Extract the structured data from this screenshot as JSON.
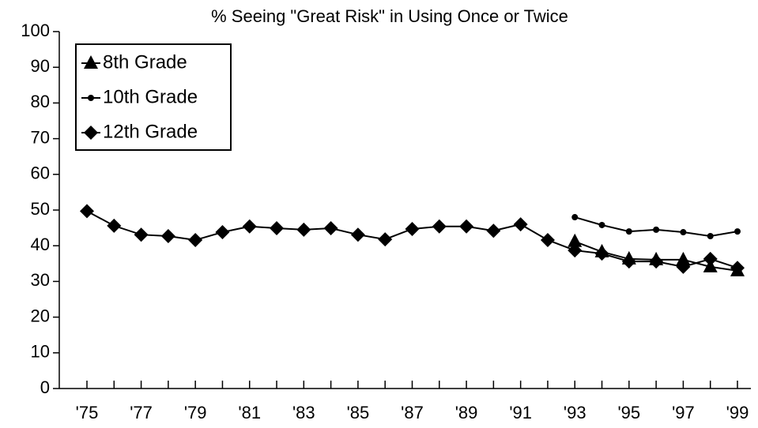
{
  "chart_data": {
    "type": "line",
    "title": "% Seeing \"Great Risk\" in Using Once or Twice",
    "categories": [
      "'75",
      null,
      "'77",
      null,
      "'79",
      null,
      "'81",
      null,
      "'83",
      null,
      "'85",
      null,
      "'87",
      null,
      "'89",
      null,
      "'91",
      null,
      "'93",
      null,
      "'95",
      null,
      "'97",
      null,
      "'99"
    ],
    "series": [
      {
        "name": "8th Grade",
        "color": "#000000",
        "marker": "triangle",
        "values": [
          null,
          null,
          null,
          null,
          null,
          null,
          null,
          null,
          null,
          null,
          null,
          null,
          null,
          null,
          null,
          null,
          null,
          null,
          41.2,
          38.3,
          36.3,
          36.1,
          36.1,
          34.1,
          33.0
        ]
      },
      {
        "name": "10th Grade",
        "color": "#000000",
        "marker": "circle",
        "values": [
          null,
          null,
          null,
          null,
          null,
          null,
          null,
          null,
          null,
          null,
          null,
          null,
          null,
          null,
          null,
          null,
          null,
          null,
          48.0,
          45.8,
          44.0,
          44.5,
          43.8,
          42.7,
          44.0
        ]
      },
      {
        "name": "12th Grade",
        "color": "#000000",
        "marker": "diamond",
        "values": [
          49.7,
          45.6,
          43.1,
          42.7,
          41.6,
          43.8,
          45.4,
          44.9,
          44.5,
          44.9,
          43.1,
          41.8,
          44.7,
          45.4,
          45.4,
          44.2,
          46.0,
          41.6,
          38.7,
          37.8,
          35.6,
          35.6,
          34.1,
          36.3,
          33.8
        ]
      }
    ],
    "ylim": [
      0,
      100
    ],
    "yticks": [
      0,
      10,
      20,
      30,
      40,
      50,
      60,
      70,
      80,
      90,
      100
    ],
    "grid": false,
    "legend": "upper left"
  }
}
